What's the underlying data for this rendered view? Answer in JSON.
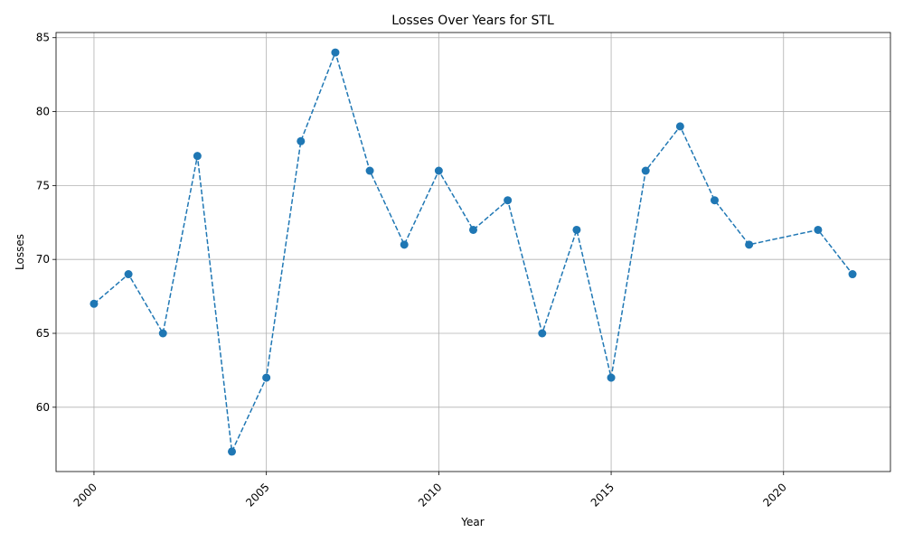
{
  "chart_data": {
    "type": "line",
    "title": "Losses Over Years for STL",
    "xlabel": "Year",
    "ylabel": "Losses",
    "x": [
      2000,
      2001,
      2002,
      2003,
      2004,
      2005,
      2006,
      2007,
      2008,
      2009,
      2010,
      2011,
      2012,
      2013,
      2014,
      2015,
      2016,
      2017,
      2018,
      2019,
      2021,
      2022
    ],
    "values": [
      67,
      69,
      65,
      77,
      57,
      62,
      78,
      84,
      76,
      71,
      76,
      72,
      74,
      65,
      72,
      62,
      76,
      79,
      74,
      71,
      72,
      69
    ],
    "color": "#1f77b4",
    "line_style": "dashed",
    "marker": "circle",
    "xlim": [
      1998.9,
      2023.1
    ],
    "xticks": [
      2000,
      2005,
      2010,
      2015,
      2020
    ],
    "ylim": [
      55.65,
      85.35
    ],
    "yticks": [
      60,
      65,
      70,
      75,
      80,
      85
    ],
    "grid": true
  }
}
